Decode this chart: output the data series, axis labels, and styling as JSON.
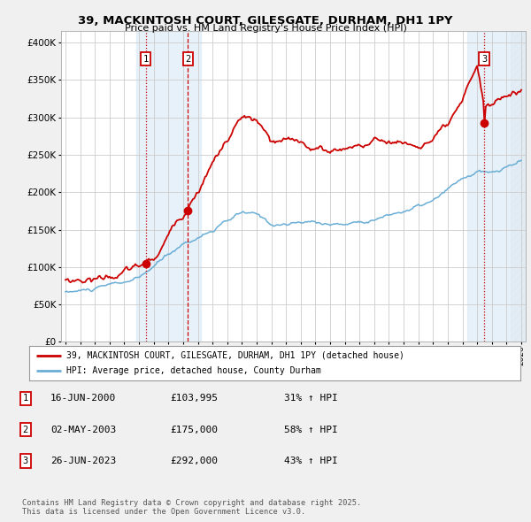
{
  "title_line1": "39, MACKINTOSH COURT, GILESGATE, DURHAM, DH1 1PY",
  "title_line2": "Price paid vs. HM Land Registry's House Price Index (HPI)",
  "ytick_values": [
    0,
    50000,
    100000,
    150000,
    200000,
    250000,
    300000,
    350000,
    400000
  ],
  "ylim": [
    0,
    415000
  ],
  "xlim_start": 1994.7,
  "xlim_end": 2026.3,
  "xtick_years": [
    1995,
    1996,
    1997,
    1998,
    1999,
    2000,
    2001,
    2002,
    2003,
    2004,
    2005,
    2006,
    2007,
    2008,
    2009,
    2010,
    2011,
    2012,
    2013,
    2014,
    2015,
    2016,
    2017,
    2018,
    2019,
    2020,
    2021,
    2022,
    2023,
    2024,
    2025,
    2026
  ],
  "hpi_color": "#6aaed6",
  "price_color": "#cc0000",
  "purchase_dates": [
    2000.46,
    2003.33,
    2023.48
  ],
  "purchase_prices": [
    103995,
    175000,
    292000
  ],
  "purchase_labels": [
    "1",
    "2",
    "3"
  ],
  "legend_line1": "39, MACKINTOSH COURT, GILESGATE, DURHAM, DH1 1PY (detached house)",
  "legend_line2": "HPI: Average price, detached house, County Durham",
  "table_entries": [
    {
      "num": "1",
      "date": "16-JUN-2000",
      "price": "£103,995",
      "pct": "31% ↑ HPI"
    },
    {
      "num": "2",
      "date": "02-MAY-2003",
      "price": "£175,000",
      "pct": "58% ↑ HPI"
    },
    {
      "num": "3",
      "date": "26-JUN-2023",
      "price": "£292,000",
      "pct": "43% ↑ HPI"
    }
  ],
  "footnote": "Contains HM Land Registry data © Crown copyright and database right 2025.\nThis data is licensed under the Open Government Licence v3.0.",
  "bg_color": "#f0f0f0",
  "plot_bg_color": "#ffffff",
  "grid_color": "#cccccc",
  "highlight_color": "#daeaf7",
  "hatch_color": "#e0e8f0"
}
